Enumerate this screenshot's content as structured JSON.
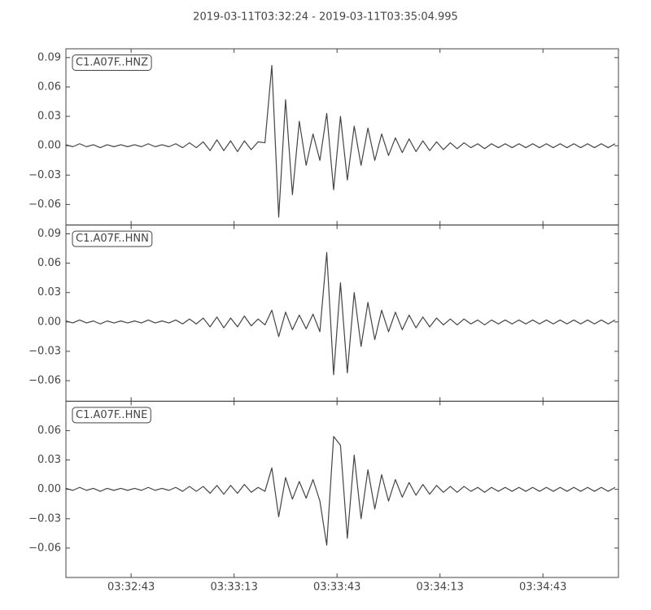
{
  "title": "2019-03-11T03:32:24  -  2019-03-11T03:35:04.995",
  "time_axis": {
    "xlim": [
      0,
      160.995
    ],
    "xticks": [
      {
        "value": 19,
        "label": "03:32:43"
      },
      {
        "value": 49,
        "label": "03:33:13"
      },
      {
        "value": 79,
        "label": "03:33:43"
      },
      {
        "value": 109,
        "label": "03:34:13"
      },
      {
        "value": 139,
        "label": "03:34:43"
      }
    ],
    "x": [
      0,
      2,
      4,
      6,
      8,
      10,
      12,
      14,
      16,
      18,
      20,
      22,
      24,
      26,
      28,
      30,
      32,
      34,
      36,
      38,
      40,
      42,
      44,
      46,
      48,
      50,
      52,
      54,
      56,
      58,
      60,
      62,
      64,
      66,
      68,
      70,
      72,
      74,
      76,
      78,
      80,
      82,
      84,
      86,
      88,
      90,
      92,
      94,
      96,
      98,
      100,
      102,
      104,
      106,
      108,
      110,
      112,
      114,
      116,
      118,
      120,
      122,
      124,
      126,
      128,
      130,
      132,
      134,
      136,
      138,
      140,
      142,
      144,
      146,
      148,
      150,
      152,
      154,
      156,
      158,
      160
    ]
  },
  "chart_data": [
    {
      "type": "line",
      "label": "C1.A07F..HNZ",
      "color": "#444444",
      "ylim": [
        -0.081,
        0.099
      ],
      "yticks": [
        {
          "value": -0.06,
          "label": "−0.06"
        },
        {
          "value": -0.03,
          "label": "−0.03"
        },
        {
          "value": 0,
          "label": "0.00"
        },
        0.03,
        0.06,
        0.09
      ],
      "values": [
        0.001,
        -0.001,
        0.002,
        -0.001,
        0.001,
        -0.002,
        0.001,
        -0.001,
        0.001,
        -0.001,
        0.001,
        -0.001,
        0.002,
        -0.001,
        0.001,
        -0.001,
        0.002,
        -0.002,
        0.003,
        -0.002,
        0.004,
        -0.005,
        0.006,
        -0.005,
        0.005,
        -0.006,
        0.005,
        -0.004,
        0.004,
        0.003,
        0.082,
        -0.073,
        0.047,
        -0.05,
        0.025,
        -0.02,
        0.012,
        -0.015,
        0.033,
        -0.045,
        0.03,
        -0.035,
        0.02,
        -0.02,
        0.018,
        -0.015,
        0.012,
        -0.01,
        0.008,
        -0.007,
        0.007,
        -0.006,
        0.005,
        -0.005,
        0.004,
        -0.004,
        0.003,
        -0.003,
        0.003,
        -0.002,
        0.002,
        -0.003,
        0.002,
        -0.002,
        0.002,
        -0.002,
        0.002,
        -0.002,
        0.002,
        -0.002,
        0.002,
        -0.002,
        0.002,
        -0.002,
        0.002,
        -0.002,
        0.002,
        -0.002,
        0.002,
        -0.002,
        0.002
      ]
    },
    {
      "type": "line",
      "label": "C1.A07F..HNN",
      "color": "#444444",
      "ylim": [
        -0.081,
        0.099
      ],
      "yticks": [
        {
          "value": -0.06,
          "label": "−0.06"
        },
        {
          "value": -0.03,
          "label": "−0.03"
        },
        {
          "value": 0,
          "label": "0.00"
        },
        0.03,
        0.06,
        0.09
      ],
      "values": [
        0.001,
        -0.001,
        0.002,
        -0.001,
        0.001,
        -0.002,
        0.001,
        -0.001,
        0.001,
        -0.001,
        0.001,
        -0.001,
        0.002,
        -0.001,
        0.001,
        -0.001,
        0.002,
        -0.002,
        0.003,
        -0.002,
        0.004,
        -0.005,
        0.005,
        -0.006,
        0.004,
        -0.005,
        0.006,
        -0.004,
        0.003,
        -0.003,
        0.012,
        -0.015,
        0.01,
        -0.008,
        0.007,
        -0.007,
        0.008,
        -0.01,
        0.071,
        -0.054,
        0.04,
        -0.052,
        0.03,
        -0.025,
        0.02,
        -0.018,
        0.012,
        -0.01,
        0.01,
        -0.008,
        0.007,
        -0.006,
        0.005,
        -0.005,
        0.004,
        -0.003,
        0.003,
        -0.003,
        0.003,
        -0.002,
        0.002,
        -0.003,
        0.002,
        -0.002,
        0.002,
        -0.002,
        0.002,
        -0.002,
        0.002,
        -0.002,
        0.002,
        -0.002,
        0.002,
        -0.002,
        0.002,
        -0.002,
        0.002,
        -0.002,
        0.002,
        -0.002,
        0.002
      ]
    },
    {
      "type": "line",
      "label": "C1.A07F..HNE",
      "color": "#444444",
      "ylim": [
        -0.09,
        0.09
      ],
      "yticks": [
        {
          "value": -0.06,
          "label": "−0.06"
        },
        {
          "value": -0.03,
          "label": "−0.03"
        },
        {
          "value": 0,
          "label": "0.00"
        },
        0.03,
        0.06
      ],
      "values": [
        0.001,
        -0.001,
        0.002,
        -0.001,
        0.001,
        -0.002,
        0.001,
        -0.001,
        0.001,
        -0.001,
        0.001,
        -0.001,
        0.002,
        -0.001,
        0.001,
        -0.001,
        0.002,
        -0.002,
        0.003,
        -0.002,
        0.003,
        -0.004,
        0.004,
        -0.005,
        0.004,
        -0.004,
        0.005,
        -0.003,
        0.002,
        -0.002,
        0.022,
        -0.028,
        0.012,
        -0.01,
        0.008,
        -0.009,
        0.01,
        -0.012,
        -0.057,
        0.054,
        0.045,
        -0.05,
        0.035,
        -0.03,
        0.02,
        -0.02,
        0.015,
        -0.012,
        0.01,
        -0.008,
        0.007,
        -0.006,
        0.005,
        -0.005,
        0.004,
        -0.003,
        0.003,
        -0.003,
        0.003,
        -0.002,
        0.002,
        -0.003,
        0.002,
        -0.002,
        0.002,
        -0.002,
        0.002,
        -0.002,
        0.002,
        -0.002,
        0.002,
        -0.002,
        0.002,
        -0.002,
        0.002,
        -0.002,
        0.002,
        -0.002,
        0.002,
        -0.002,
        0.002
      ]
    }
  ]
}
